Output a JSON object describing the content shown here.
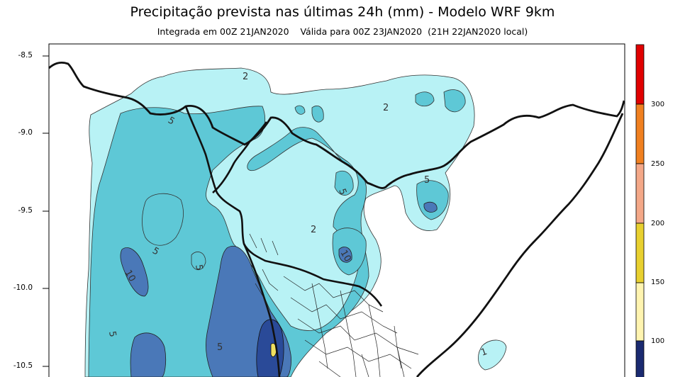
{
  "title": "Precipitação prevista nas últimas 24h (mm) - Modelo WRF 9km",
  "subtitle": "Integrada em 00Z 21JAN2020    Válida para 00Z 23JAN2020  (21H 22JAN2020 local)",
  "y_axis": {
    "ticks": [
      "-8.5",
      "-9.0",
      "-9.5",
      "-10.0",
      "-10.5"
    ]
  },
  "colorbar": {
    "labels": [
      "300",
      "250",
      "200",
      "150",
      "100"
    ],
    "colors": [
      "#e00000",
      "#f08020",
      "#f4a888",
      "#e8d030",
      "#fff4b0",
      "#1a2a70"
    ]
  },
  "contour_labels": [
    "2",
    "5",
    "5",
    "5",
    "5",
    "10",
    "5",
    "5",
    "10",
    "2",
    "5",
    "2",
    "1"
  ],
  "fill_colors": {
    "light": "#b8f2f5",
    "medium": "#5ec8d6",
    "dark": "#4a78b8",
    "darker": "#2a4a98",
    "yellow": "#f0e060"
  }
}
